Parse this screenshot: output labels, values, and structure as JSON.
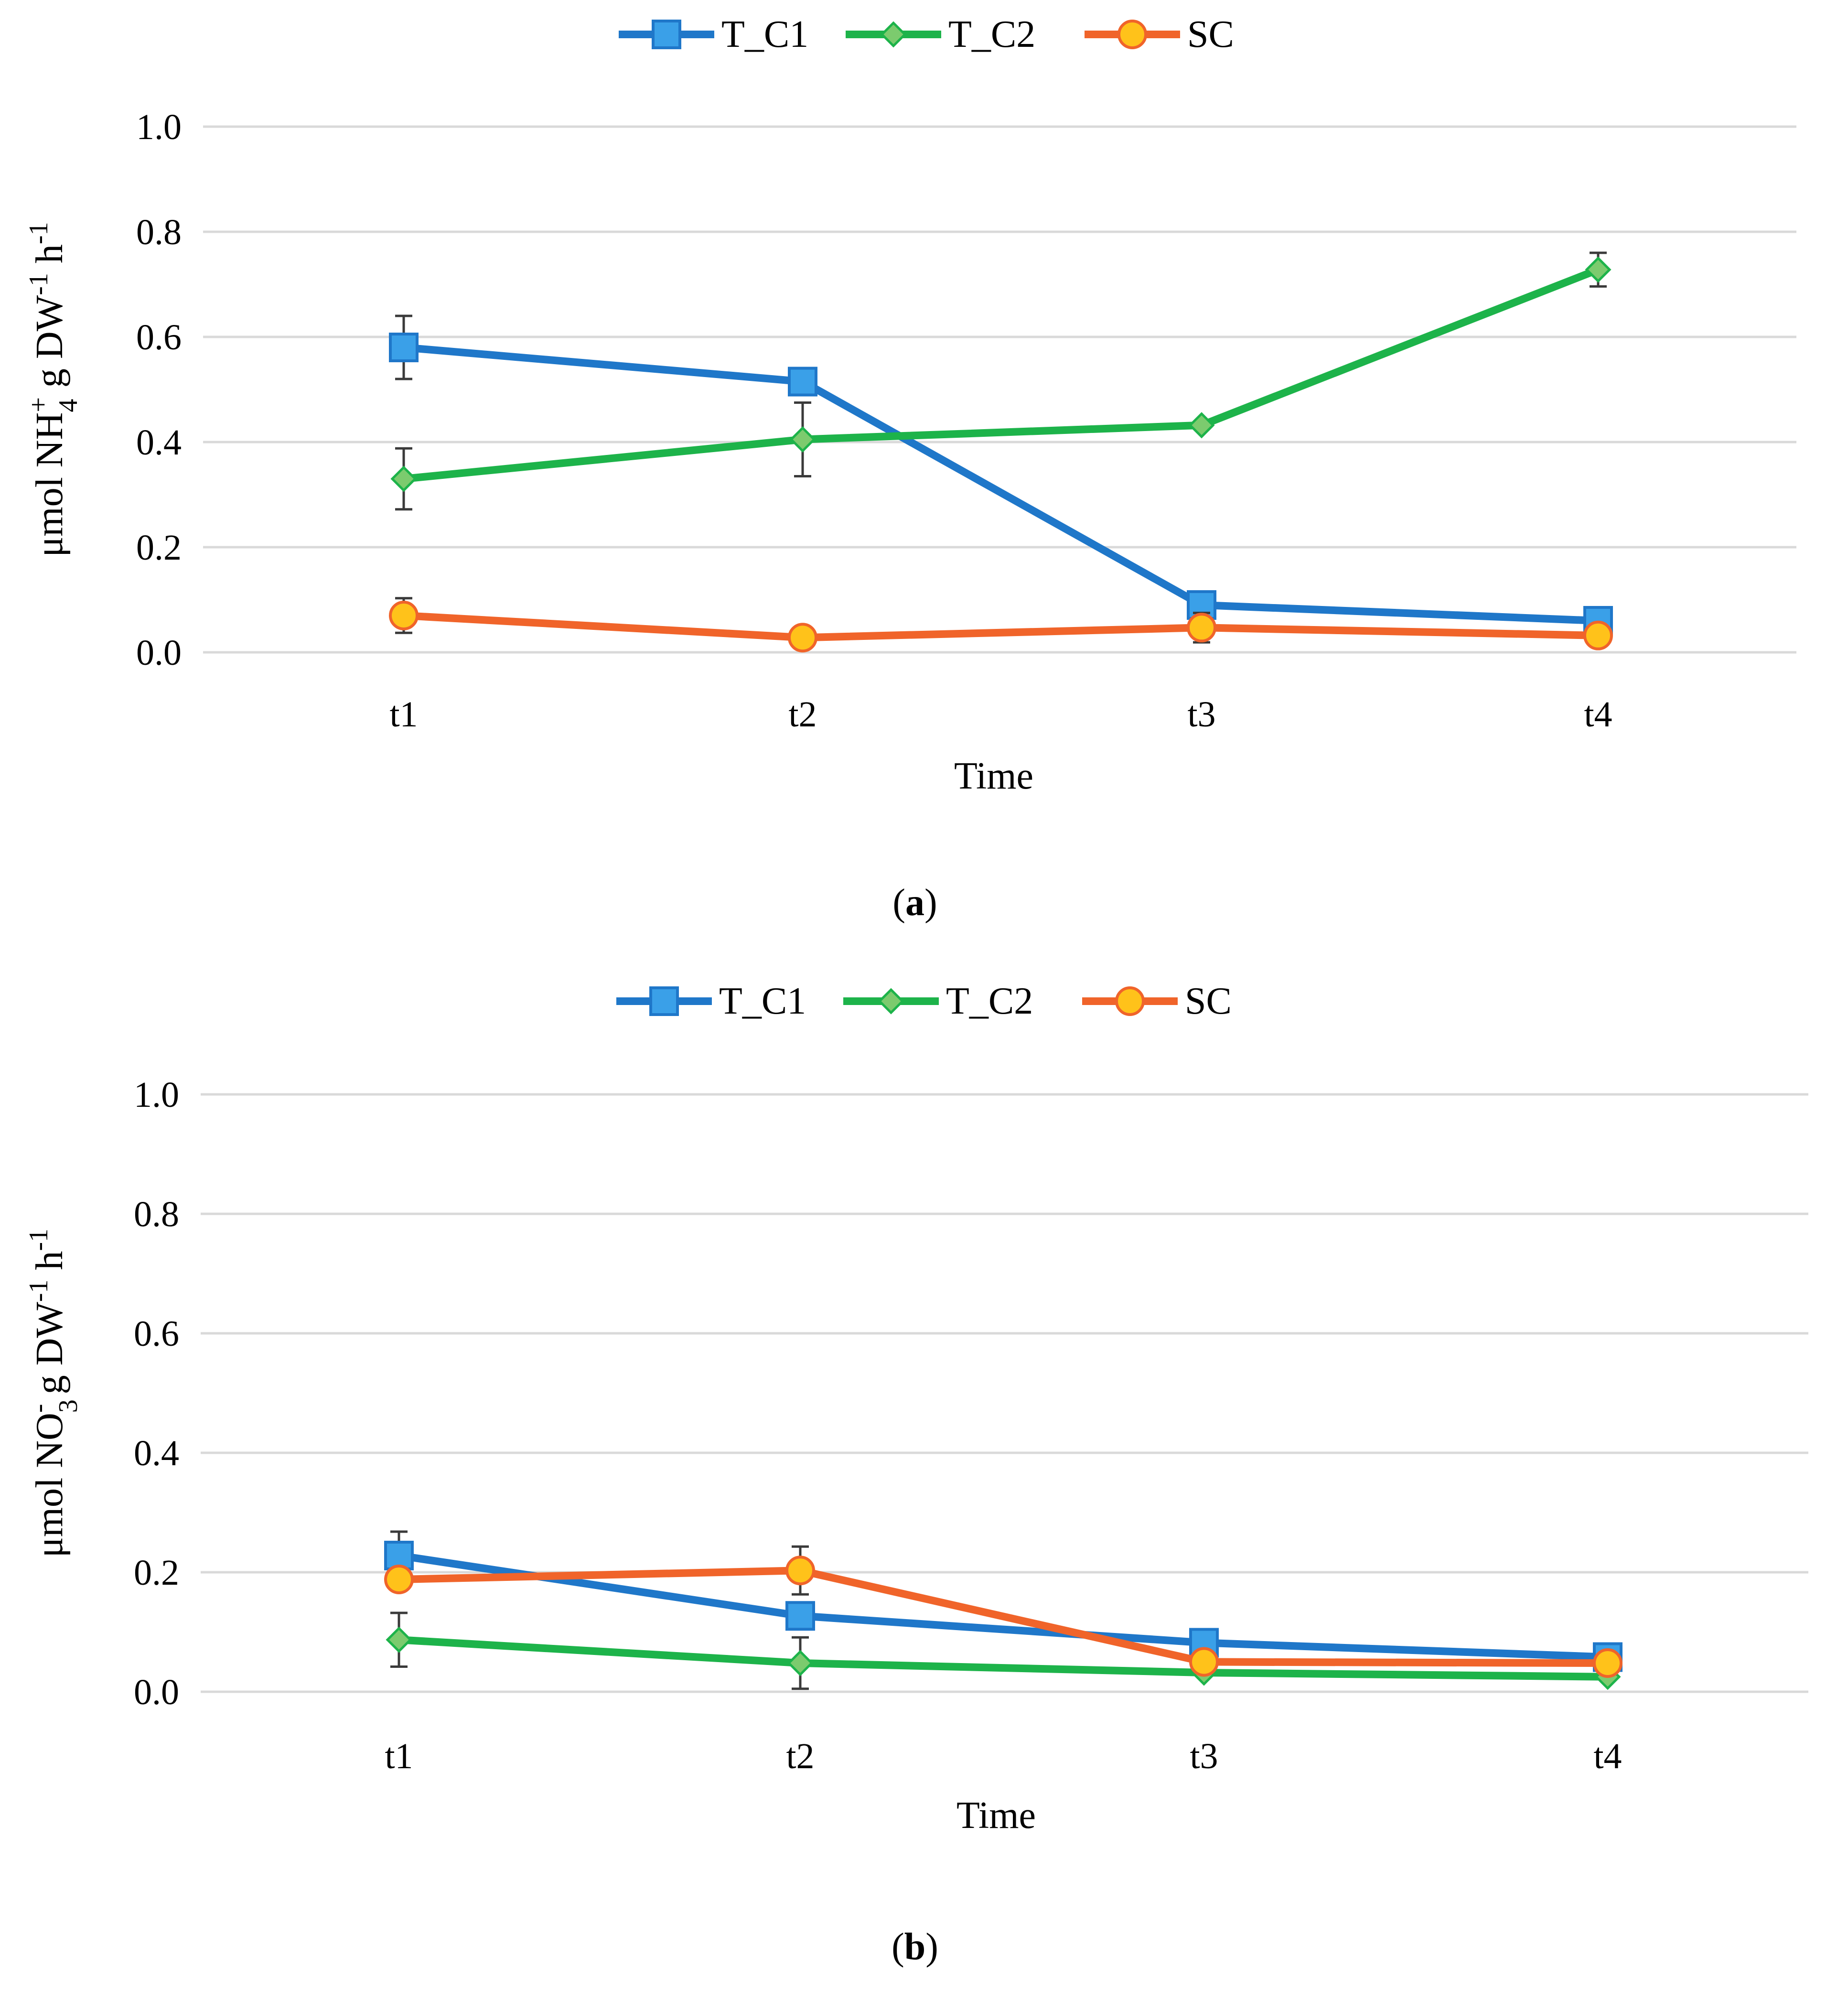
{
  "colors": {
    "T_C1_line": "#1F77C9",
    "T_C1_marker_fill": "#3AA0E8",
    "T_C2_line": "#1DB34A",
    "T_C2_marker_fill": "#7CCB6E",
    "SC_line": "#F0642A",
    "SC_marker_fill": "#FFC21A",
    "grid": "#D9D9D9",
    "error_bar": "#3A3A3A"
  },
  "chart_data": [
    {
      "type": "line",
      "panel_label": "a",
      "xlabel": "Time",
      "ylabel": {
        "prefix": "μmol NH",
        "sub": "4",
        "sup": "+",
        "suffix": " g DW",
        "sup2": "-1",
        "mid": " h",
        "sup3": "-1"
      },
      "ylim": [
        0,
        1.0
      ],
      "yticks": [
        "0.0",
        "0.2",
        "0.4",
        "0.6",
        "0.8",
        "1.0"
      ],
      "categories": [
        "t1",
        "t2",
        "t3",
        "t4"
      ],
      "grid": true,
      "legend": {
        "position": "top-center"
      },
      "series": [
        {
          "name": "T_C1",
          "marker": "square",
          "values": [
            0.58,
            0.515,
            0.09,
            0.06
          ],
          "errors": [
            0.06,
            0.0,
            0.0,
            0.0
          ]
        },
        {
          "name": "T_C2",
          "marker": "diamond",
          "values": [
            0.33,
            0.405,
            0.432,
            0.728
          ],
          "errors": [
            0.058,
            0.07,
            0.0,
            0.032
          ]
        },
        {
          "name": "SC",
          "marker": "circle",
          "values": [
            0.07,
            0.028,
            0.047,
            0.032
          ],
          "errors": [
            0.033,
            0.0,
            0.028,
            0.0
          ]
        }
      ]
    },
    {
      "type": "line",
      "panel_label": "b",
      "xlabel": "Time",
      "ylabel": {
        "prefix": "μmol NO",
        "sub": "3",
        "sup": "-",
        "suffix": " g DW",
        "sup2": "-1",
        "mid": " h",
        "sup3": "-1"
      },
      "ylim": [
        0,
        1.0
      ],
      "yticks": [
        "0.0",
        "0.2",
        "0.4",
        "0.6",
        "0.8",
        "1.0"
      ],
      "categories": [
        "t1",
        "t2",
        "t3",
        "t4"
      ],
      "grid": true,
      "legend": {
        "position": "top-center"
      },
      "series": [
        {
          "name": "T_C1",
          "marker": "square",
          "values": [
            0.228,
            0.127,
            0.082,
            0.058
          ],
          "errors": [
            0.04,
            0.0,
            0.0,
            0.0
          ]
        },
        {
          "name": "T_C2",
          "marker": "diamond",
          "values": [
            0.087,
            0.048,
            0.032,
            0.025
          ],
          "errors": [
            0.045,
            0.043,
            0.0,
            0.0
          ]
        },
        {
          "name": "SC",
          "marker": "circle",
          "values": [
            0.188,
            0.203,
            0.05,
            0.048
          ],
          "errors": [
            0.0,
            0.04,
            0.0,
            0.0
          ]
        }
      ]
    }
  ]
}
